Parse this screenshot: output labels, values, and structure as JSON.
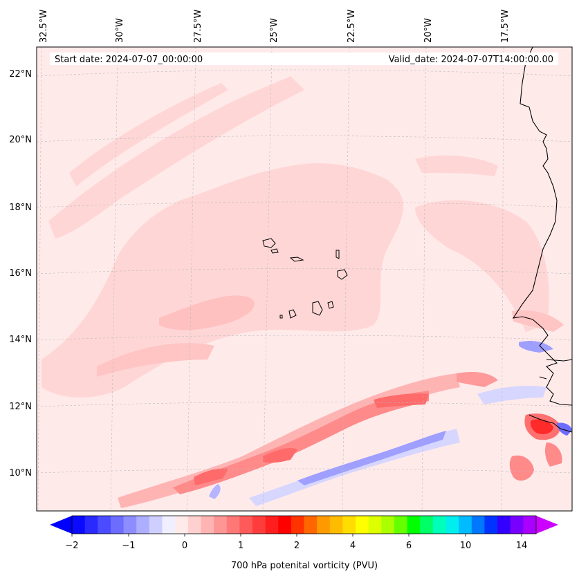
{
  "header": {
    "start_date": "Start date: 2024-07-07_00:00:00",
    "valid_date": "Valid_date: 2024-07-07T14:00:00.00"
  },
  "map": {
    "lon_labels": [
      "32.5°W",
      "30°W",
      "27.5°W",
      "25°W",
      "22.5°W",
      "20°W",
      "17.5°W"
    ],
    "lat_labels": [
      "22°N",
      "20°N",
      "18°N",
      "16°N",
      "14°N",
      "12°N",
      "10°N"
    ]
  },
  "colorbar": {
    "label": "700 hPa potenital vorticity (PVU)",
    "tick_labels": [
      "−2",
      "−1",
      "0",
      "1",
      "2",
      "4",
      "6",
      "10",
      "14"
    ],
    "colors": [
      "#0a0aff",
      "#2a2aff",
      "#4b4bff",
      "#6c6cff",
      "#8d8dff",
      "#aeaeff",
      "#cfcfff",
      "#efefff",
      "#ffeaea",
      "#ffd0d0",
      "#ffb4b4",
      "#ff9696",
      "#ff7878",
      "#ff5a5a",
      "#ff3c3c",
      "#ff1e1e",
      "#ff0000",
      "#ff3300",
      "#ff6600",
      "#ff9900",
      "#ffbb00",
      "#ffdd00",
      "#ffff00",
      "#ddff00",
      "#aaff00",
      "#66ff00",
      "#00ff00",
      "#00ff66",
      "#00ffbb",
      "#00eeee",
      "#00bbff",
      "#0077ff",
      "#0033ff",
      "#3300ff",
      "#7700ff",
      "#aa00ff"
    ],
    "extend_min_color": "#0000ff",
    "extend_max_color": "#cc00ff"
  }
}
